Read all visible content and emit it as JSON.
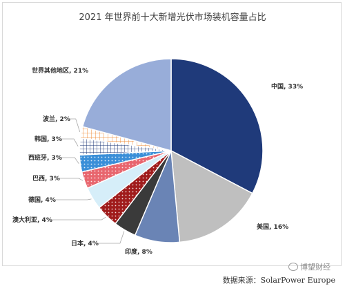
{
  "chart_data": {
    "type": "pie",
    "title": "2021 年世界前十大新增光伏市场装机容量占比",
    "slices": [
      {
        "name": "中国",
        "value": 33,
        "label": "中国, 33%",
        "color": "#1f3a7a",
        "pattern": "solid"
      },
      {
        "name": "美国",
        "value": 16,
        "label": "美国, 16%",
        "color": "#bfbfbf",
        "pattern": "solid"
      },
      {
        "name": "印度",
        "value": 8,
        "label": "印度, 8%",
        "color": "#6a84b5",
        "pattern": "solid"
      },
      {
        "name": "日本",
        "value": 4,
        "label": "日本, 4%",
        "color": "#3a3a3a",
        "pattern": "solid"
      },
      {
        "name": "澳大利亚",
        "value": 4,
        "label": "澳大利亚, 4%",
        "color": "#a01c1c",
        "pattern": "dots"
      },
      {
        "name": "德国",
        "value": 4,
        "label": "德国, 4%",
        "color": "#d6eef9",
        "pattern": "solid"
      },
      {
        "name": "巴西",
        "value": 3,
        "label": "巴西, 3%",
        "color": "#e8666e",
        "pattern": "dots"
      },
      {
        "name": "西班牙",
        "value": 3,
        "label": "西班牙, 3%",
        "color": "#3a8fd8",
        "pattern": "dots"
      },
      {
        "name": "韩国",
        "value": 3,
        "label": "韩国, 3%",
        "color": "#1f3a7a",
        "pattern": "grid"
      },
      {
        "name": "波兰",
        "value": 2,
        "label": "波兰, 2%",
        "color": "#ef8c3a",
        "pattern": "grid"
      },
      {
        "name": "世界其他地区",
        "value": 21,
        "label": "世界其他地区, 21%",
        "color": "#98add9",
        "pattern": "solid"
      }
    ]
  },
  "source": "数据来源：SolarPower Europe",
  "watermark": "博望财经"
}
